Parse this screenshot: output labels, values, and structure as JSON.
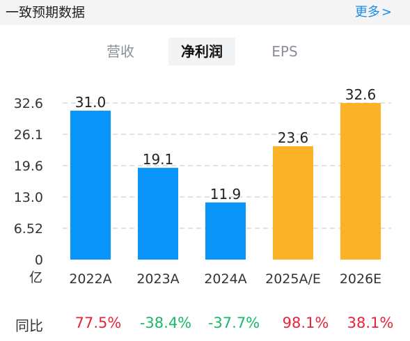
{
  "header": {
    "title": "一致预期数据",
    "more": "更多",
    "more_chevron": ">"
  },
  "tabs": [
    {
      "label": "营收",
      "active": false
    },
    {
      "label": "净利润",
      "active": true
    },
    {
      "label": "EPS",
      "active": false
    }
  ],
  "colors": {
    "actual": "#0a95fa",
    "estimate": "#fbb226",
    "up": "#e8243b",
    "down": "#19b86b",
    "grid": "#d9d9d9",
    "link": "#1a8ce8"
  },
  "chart_data": {
    "type": "bar",
    "categories": [
      "2022A",
      "2023A",
      "2024A",
      "2025A/E",
      "2026E"
    ],
    "values": [
      31.0,
      19.1,
      11.9,
      23.6,
      32.6
    ],
    "value_labels": [
      "31.0",
      "19.1",
      "11.9",
      "23.6",
      "32.6"
    ],
    "bar_kind": [
      "actual",
      "actual",
      "actual",
      "estimate",
      "estimate"
    ],
    "yticks": [
      "0",
      "6.52",
      "13.0",
      "19.6",
      "26.1",
      "32.6"
    ],
    "ytick_values": [
      0,
      6.52,
      13.04,
      19.56,
      26.08,
      32.6
    ],
    "ylim": [
      0,
      32.6
    ],
    "unit": "亿",
    "grid": true
  },
  "yoy": {
    "label": "同比",
    "values": [
      "77.5%",
      "-38.4%",
      "-37.7%",
      "98.1%",
      "38.1%"
    ],
    "direction": [
      "up",
      "down",
      "down",
      "up",
      "up"
    ]
  }
}
